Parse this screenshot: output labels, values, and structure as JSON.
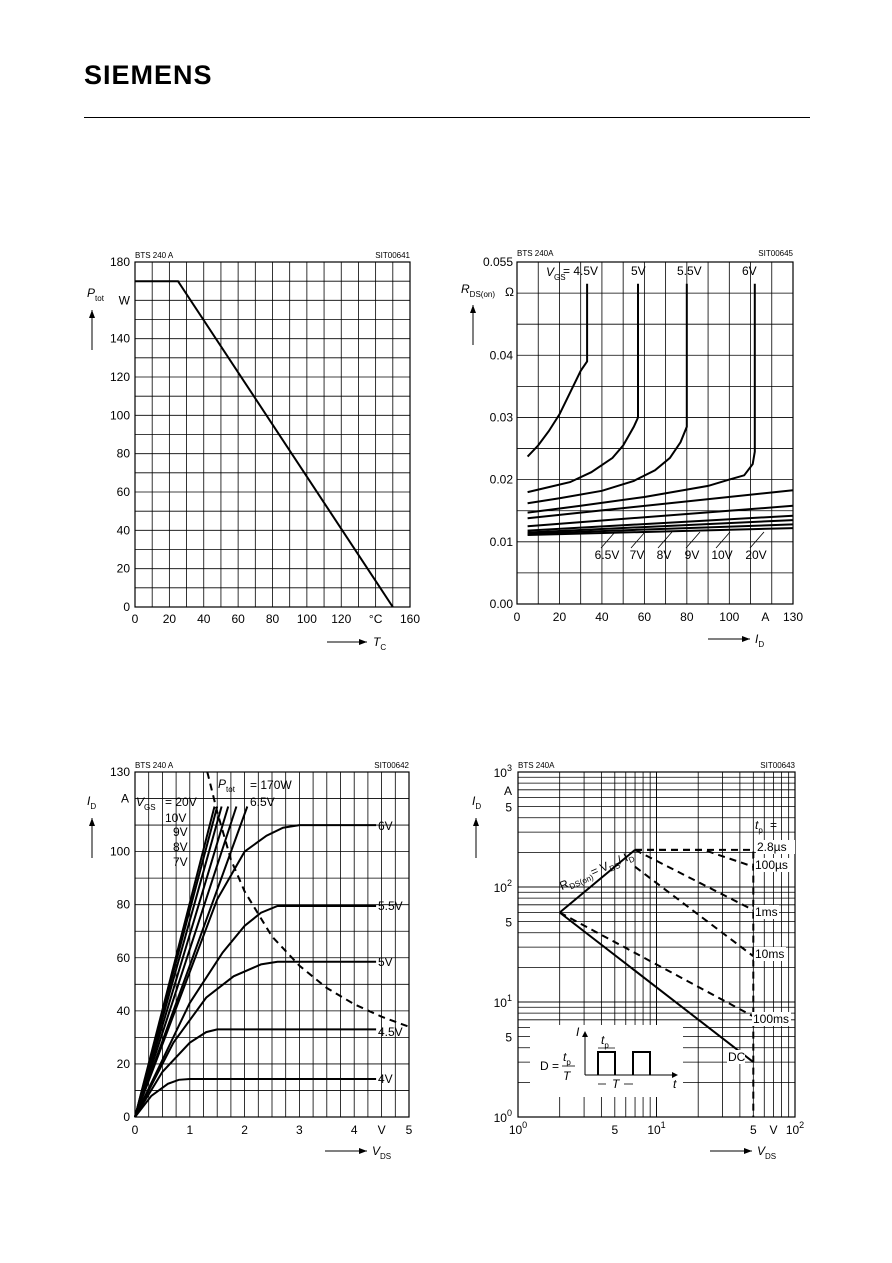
{
  "header": {
    "logo": "SIEMENS"
  },
  "chart_data": [
    {
      "type": "line",
      "device": "BTS 240 A",
      "code": "SIT00641",
      "ylabel": "Ptot",
      "ylabel_sub": "tot",
      "ylabel_main": "P",
      "yunit": "W",
      "xlabel_main": "T",
      "xlabel_sub": "C",
      "xunit": "°C",
      "xlim": [
        0,
        160
      ],
      "ylim": [
        0,
        180
      ],
      "xticks": [
        "0",
        "20",
        "40",
        "60",
        "80",
        "100",
        "120",
        "160"
      ],
      "yticks": [
        "0",
        "20",
        "40",
        "60",
        "80",
        "100",
        "120",
        "140",
        "180"
      ],
      "series": [
        {
          "x": [
            0,
            25,
            150
          ],
          "y": [
            170,
            170,
            0
          ]
        }
      ]
    },
    {
      "type": "line",
      "device": "BTS 240A",
      "code": "SIT00645",
      "ylabel_main": "R",
      "ylabel_sub": "DS(on)",
      "yunit": "Ω",
      "xlabel_main": "I",
      "xlabel_sub": "D",
      "xunit": "A",
      "xlim": [
        0,
        130
      ],
      "ylim": [
        0,
        0.055
      ],
      "xticks": [
        "0",
        "20",
        "40",
        "60",
        "80",
        "100",
        "130"
      ],
      "yticks": [
        "0.00",
        "0.01",
        "0.02",
        "0.03",
        "0.04",
        "0.055"
      ],
      "vgs_prefix": "V",
      "vgs_sub": "GS",
      "top_labels": [
        "= 4.5V",
        "5V",
        "5.5V",
        "6V"
      ],
      "bottom_labels": [
        "6.5V",
        "7V",
        "8V",
        "9V",
        "10V",
        "20V"
      ],
      "series": [
        {
          "name": "4.5V",
          "x": [
            5,
            10,
            15,
            20,
            25,
            30,
            33,
            33
          ],
          "y": [
            0.0237,
            0.0255,
            0.0278,
            0.0305,
            0.034,
            0.0375,
            0.039,
            0.0515
          ]
        },
        {
          "name": "5V",
          "x": [
            5,
            15,
            25,
            35,
            45,
            50,
            55,
            57,
            57
          ],
          "y": [
            0.018,
            0.0188,
            0.0196,
            0.0212,
            0.0235,
            0.0255,
            0.0285,
            0.03,
            0.0515
          ]
        },
        {
          "name": "5.5V",
          "x": [
            5,
            20,
            40,
            55,
            65,
            72,
            77,
            80,
            80
          ],
          "y": [
            0.0162,
            0.017,
            0.0182,
            0.0198,
            0.0215,
            0.0235,
            0.026,
            0.0285,
            0.0515
          ]
        },
        {
          "name": "6V",
          "x": [
            5,
            30,
            60,
            90,
            100,
            107,
            111,
            112,
            112
          ],
          "y": [
            0.0147,
            0.0158,
            0.0172,
            0.019,
            0.02,
            0.0207,
            0.0225,
            0.0245,
            0.0515
          ]
        },
        {
          "name": "6.5V",
          "x": [
            5,
            130
          ],
          "y": [
            0.0138,
            0.0183
          ]
        },
        {
          "name": "7V",
          "x": [
            5,
            130
          ],
          "y": [
            0.0125,
            0.0158
          ]
        },
        {
          "name": "8V",
          "x": [
            5,
            130
          ],
          "y": [
            0.0118,
            0.0142
          ]
        },
        {
          "name": "9V",
          "x": [
            5,
            130
          ],
          "y": [
            0.0115,
            0.0135
          ]
        },
        {
          "name": "10V",
          "x": [
            5,
            130
          ],
          "y": [
            0.0113,
            0.0128
          ]
        },
        {
          "name": "20V",
          "x": [
            5,
            130
          ],
          "y": [
            0.0111,
            0.0122
          ]
        }
      ]
    },
    {
      "type": "line",
      "device": "BTS 240 A",
      "code": "SIT00642",
      "ylabel_main": "I",
      "ylabel_sub": "D",
      "yunit": "A",
      "xlabel_main": "V",
      "xlabel_sub": "DS",
      "xunit": "V",
      "xlim": [
        0,
        5
      ],
      "ylim": [
        0,
        130
      ],
      "xticks": [
        "0",
        "1",
        "2",
        "3",
        "4",
        "5"
      ],
      "yticks": [
        "0",
        "20",
        "40",
        "60",
        "80",
        "100",
        "130"
      ],
      "ptot_label": "P",
      "ptot_sub": "tot",
      "ptot_value": "= 170W",
      "vgs_prefix": "V",
      "vgs_sub": "GS",
      "left_labels": [
        "= 20V",
        "10V",
        "9V",
        "8V",
        "7V"
      ],
      "right_labels": [
        "6.5V",
        "6V",
        "5.5V",
        "5V",
        "4.5V",
        "4V"
      ],
      "series": [
        {
          "name": "4V",
          "x": [
            0,
            0.3,
            0.6,
            0.8,
            1.0,
            4.4
          ],
          "y": [
            0,
            8,
            12.5,
            14,
            14.3,
            14.3
          ]
        },
        {
          "name": "4.5V",
          "x": [
            0,
            0.5,
            1.0,
            1.3,
            1.5,
            4.4
          ],
          "y": [
            0,
            17,
            28,
            32,
            33,
            33
          ]
        },
        {
          "name": "5V",
          "x": [
            0,
            0.7,
            1.3,
            1.8,
            2.3,
            2.6,
            4.4
          ],
          "y": [
            0,
            28,
            45,
            53,
            57.5,
            58.5,
            58.5
          ]
        },
        {
          "name": "5.5V",
          "x": [
            0,
            1.0,
            1.6,
            2.0,
            2.3,
            2.6,
            4.4
          ],
          "y": [
            0,
            43,
            62,
            72,
            77,
            79.5,
            79.5
          ]
        },
        {
          "name": "6V",
          "x": [
            0,
            1.5,
            2.0,
            2.4,
            2.7,
            3.0,
            4.4
          ],
          "y": [
            0,
            82,
            100,
            106,
            109,
            110,
            110
          ]
        },
        {
          "name": "6.5V",
          "x": [
            0,
            2.05
          ],
          "y": [
            0,
            117
          ]
        },
        {
          "name": "7V",
          "x": [
            0,
            1.85
          ],
          "y": [
            0,
            117
          ]
        },
        {
          "name": "8V",
          "x": [
            0,
            1.7
          ],
          "y": [
            0,
            117
          ]
        },
        {
          "name": "9V",
          "x": [
            0,
            1.58
          ],
          "y": [
            0,
            117
          ]
        },
        {
          "name": "10V",
          "x": [
            0,
            1.5
          ],
          "y": [
            0,
            117
          ]
        },
        {
          "name": "20V",
          "x": [
            0,
            1.45
          ],
          "y": [
            0,
            117
          ]
        },
        {
          "name": "P = 170W",
          "style": "dashed",
          "x": [
            1.32,
            1.5,
            1.75,
            2.0,
            2.5,
            3.0,
            3.5,
            4.0,
            4.5,
            5.0
          ],
          "y": [
            130,
            115,
            97,
            85,
            68,
            57,
            48.6,
            42.5,
            37.8,
            34
          ]
        }
      ]
    },
    {
      "type": "line",
      "scale": "log-log",
      "device": "BTS 240A",
      "code": "SIT00643",
      "ylabel_main": "I",
      "ylabel_sub": "D",
      "yunit": "A",
      "xlabel_main": "V",
      "xlabel_sub": "DS",
      "xunit": "V",
      "xlim": [
        1,
        100
      ],
      "ylim": [
        1,
        1000
      ],
      "xticks": [
        {
          "v": 1,
          "b": "10",
          "e": "0"
        },
        {
          "v": 5,
          "b": "5",
          "e": ""
        },
        {
          "v": 10,
          "b": "10",
          "e": "1"
        },
        {
          "v": 50,
          "b": "5",
          "e": ""
        },
        {
          "v": 100,
          "b": "10",
          "e": "2"
        }
      ],
      "yticks": [
        {
          "v": 1,
          "b": "10",
          "e": "0"
        },
        {
          "v": 5,
          "b": "5",
          "e": ""
        },
        {
          "v": 10,
          "b": "10",
          "e": "1"
        },
        {
          "v": 50,
          "b": "5",
          "e": ""
        },
        {
          "v": 100,
          "b": "10",
          "e": "2"
        },
        {
          "v": 500,
          "b": "5",
          "e": ""
        },
        {
          "v": 1000,
          "b": "10",
          "e": "3"
        }
      ],
      "rds_label": "R",
      "rds_sub": "DS(on)",
      "rds_eq": "= V",
      "rds_sub2": "DS",
      "rds_div": "/ I",
      "rds_sub3": "D",
      "tp_label": "t",
      "tp_sub": "p",
      "tp_eq": "=",
      "pulse_labels": [
        "2.8µs",
        "100µs",
        "1ms",
        "10ms",
        "100ms",
        "DC"
      ],
      "inset": {
        "i_label": "I",
        "t_label": "t",
        "tp": "t",
        "tp_sub": "p",
        "T": "T",
        "D_eq": "D =",
        "frac_top": "t",
        "frac_top_sub": "p",
        "frac_bot": "T"
      },
      "series": [
        {
          "name": "RDS(on) limit",
          "x": [
            2,
            7
          ],
          "y": [
            60,
            210
          ]
        },
        {
          "name": "2.8µs",
          "style": "dashed",
          "x": [
            7,
            45,
            50,
            50
          ],
          "y": [
            210,
            210,
            210,
            1
          ]
        },
        {
          "name": "100µs",
          "style": "dashed",
          "x": [
            7,
            22,
            50
          ],
          "y": [
            210,
            210,
            150
          ]
        },
        {
          "name": "1ms",
          "style": "dashed",
          "x": [
            7,
            50
          ],
          "y": [
            210,
            63
          ]
        },
        {
          "name": "10ms",
          "style": "dashed",
          "x": [
            7,
            50
          ],
          "y": [
            150,
            25
          ]
        },
        {
          "name": "100ms",
          "style": "dashed",
          "x": [
            2,
            50
          ],
          "y": [
            60,
            7.5
          ]
        },
        {
          "name": "DC",
          "x": [
            2,
            50
          ],
          "y": [
            60,
            3
          ]
        }
      ]
    }
  ]
}
